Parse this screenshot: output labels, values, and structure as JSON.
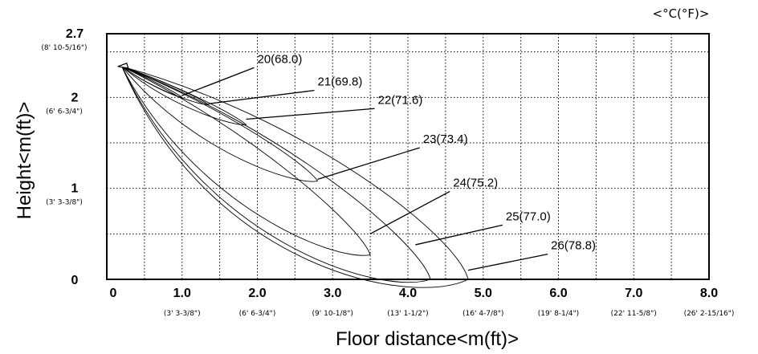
{
  "chart_data": {
    "type": "line",
    "unit_note": "<°C(°F)>",
    "xlabel": "Floor distance<m(ft)>",
    "ylabel": "Height<m(ft)>",
    "xlim": [
      0,
      8.0
    ],
    "ylim": [
      0,
      2.7
    ],
    "grid": true,
    "x_ticks": [
      {
        "value": 0,
        "label": "0",
        "sub": ""
      },
      {
        "value": 1.0,
        "label": "1.0",
        "sub": "(3' 3-3/8\")"
      },
      {
        "value": 2.0,
        "label": "2.0",
        "sub": "(6' 6-3/4\")"
      },
      {
        "value": 3.0,
        "label": "3.0",
        "sub": "(9' 10-1/8\")"
      },
      {
        "value": 4.0,
        "label": "4.0",
        "sub": "(13' 1-1/2\")"
      },
      {
        "value": 5.0,
        "label": "5.0",
        "sub": "(16' 4-7/8\")"
      },
      {
        "value": 6.0,
        "label": "6.0",
        "sub": "(19' 8-1/4\")"
      },
      {
        "value": 7.0,
        "label": "7.0",
        "sub": "(22' 11-5/8\")"
      },
      {
        "value": 8.0,
        "label": "8.0",
        "sub": "(26' 2-15/16\")"
      }
    ],
    "y_ticks": [
      {
        "value": 0,
        "label": "0",
        "sub": ""
      },
      {
        "value": 1,
        "label": "1",
        "sub": "(3' 3-3/8\")"
      },
      {
        "value": 2,
        "label": "2",
        "sub": "(6' 6-3/4\")"
      },
      {
        "value": 2.7,
        "label": "2.7",
        "sub": "(8' 10-5/16\")"
      }
    ],
    "source_point": [
      0.2,
      2.34
    ],
    "series": [
      {
        "name": "20(68.0)",
        "tip": [
          1.0,
          2.0
        ],
        "spread": 0.06,
        "label_at": [
          2.0,
          2.38
        ],
        "leader_to": [
          1.0,
          2.02
        ]
      },
      {
        "name": "21(69.8)",
        "tip": [
          1.35,
          1.92
        ],
        "spread": 0.08,
        "label_at": [
          2.8,
          2.13
        ],
        "leader_to": [
          1.35,
          1.93
        ]
      },
      {
        "name": "22(71.6)",
        "tip": [
          1.85,
          1.7
        ],
        "spread": 0.1,
        "label_at": [
          3.6,
          1.93
        ],
        "leader_to": [
          1.85,
          1.76
        ]
      },
      {
        "name": "23(73.4)",
        "tip": [
          2.8,
          1.08
        ],
        "spread": 0.14,
        "label_at": [
          4.2,
          1.5
        ],
        "leader_to": [
          2.8,
          1.1
        ]
      },
      {
        "name": "24(75.2)",
        "tip": [
          3.5,
          0.27
        ],
        "spread": 0.18,
        "label_at": [
          4.6,
          1.02
        ],
        "leader_to": [
          3.5,
          0.5
        ]
      },
      {
        "name": "25(77.0)",
        "tip": [
          4.3,
          0.0
        ],
        "spread": 0.22,
        "label_at": [
          5.3,
          0.65
        ],
        "leader_to": [
          4.1,
          0.38
        ]
      },
      {
        "name": "26(78.8)",
        "tip": [
          4.8,
          0.0
        ],
        "spread": 0.26,
        "label_at": [
          5.9,
          0.33
        ],
        "leader_to": [
          4.8,
          0.1
        ]
      }
    ]
  }
}
